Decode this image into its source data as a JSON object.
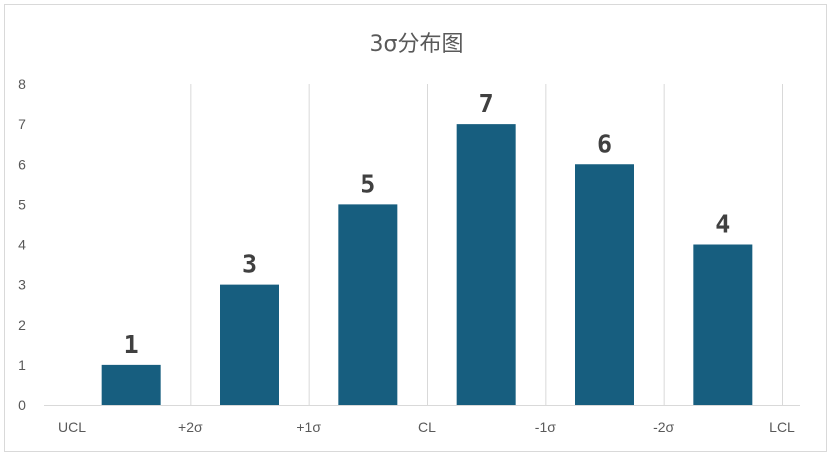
{
  "chart_data": {
    "type": "bar",
    "title": "3σ分布图",
    "xlabel": "",
    "ylabel": "",
    "x_ticks": [
      "UCL",
      "+2σ",
      "+1σ",
      "CL",
      "-1σ",
      "-2σ",
      "LCL"
    ],
    "bars": [
      {
        "x": 0.5,
        "value": 1
      },
      {
        "x": 1.5,
        "value": 3
      },
      {
        "x": 2.5,
        "value": 5
      },
      {
        "x": 3.5,
        "value": 7
      },
      {
        "x": 4.5,
        "value": 6
      },
      {
        "x": 5.5,
        "value": 4
      }
    ],
    "ylim": [
      0,
      8
    ],
    "y_ticks": [
      0,
      1,
      2,
      3,
      4,
      5,
      6,
      7,
      8
    ],
    "grid": "vertical",
    "legend": "none",
    "bar_color": "#175e7f",
    "data_labels": true
  }
}
